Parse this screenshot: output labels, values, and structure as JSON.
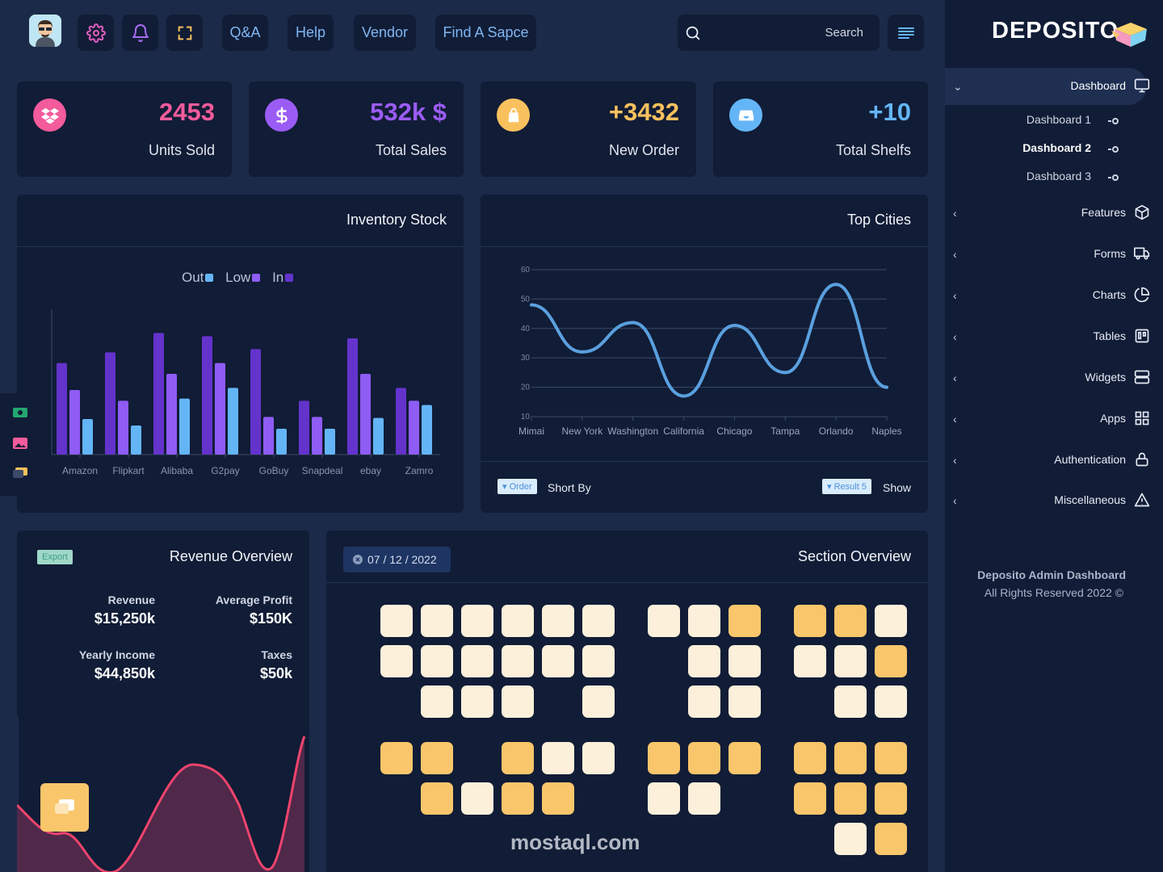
{
  "topbar": {
    "avatar_icon": "user-avatar-icon",
    "settings_icon": "gear-icon",
    "bell_icon": "bell-icon",
    "fullscreen_icon": "fullscreen-icon",
    "links": [
      "Q&A",
      "Help",
      "Vendor",
      "Find A Sapce"
    ],
    "search_placeholder": "Search",
    "menu_icon": "menu-lines-icon"
  },
  "stats": [
    {
      "value": "2453",
      "label": "Units Sold",
      "icon": "dropbox-icon",
      "color": "#f35b9c"
    },
    {
      "value": "532k $",
      "label": "Total Sales",
      "icon": "dollar-icon",
      "color": "#9b5cf5"
    },
    {
      "value": "+3432",
      "label": "New Order",
      "icon": "shopping-bag-icon",
      "color": "#f9c15e"
    },
    {
      "value": "+10",
      "label": "Total Shelfs",
      "icon": "inbox-icon",
      "color": "#64b5f6"
    }
  ],
  "inventory": {
    "title": "Inventory Stock",
    "legend": [
      "Out",
      "Low",
      "In"
    ],
    "colors": {
      "Out": "#64b5f6",
      "Low": "#8f5cf5",
      "In": "#6433cc"
    }
  },
  "top_cities": {
    "title": "Top Cities",
    "order_tag": "Order",
    "short_by": "Short By",
    "result_tag": "Result 5",
    "show": "Show"
  },
  "chart_data": [
    {
      "type": "bar",
      "categories": [
        "Amazon",
        "Flipkart",
        "Alibaba",
        "G2pay",
        "GoBuy",
        "Snapdeal",
        "ebay",
        "Zamro"
      ],
      "series": [
        {
          "name": "In",
          "values": [
            85,
            95,
            113,
            110,
            98,
            50,
            108,
            62
          ]
        },
        {
          "name": "Low",
          "values": [
            60,
            50,
            75,
            85,
            35,
            35,
            75,
            50
          ]
        },
        {
          "name": "Out",
          "values": [
            33,
            27,
            52,
            62,
            24,
            24,
            34,
            46
          ]
        }
      ],
      "ylim": [
        0,
        135
      ]
    },
    {
      "type": "line",
      "categories": [
        "Mimai",
        "New York",
        "Washington",
        "California",
        "Chicago",
        "Tampa",
        "Orlando",
        "Naples"
      ],
      "ylim": [
        10,
        60
      ],
      "yticks": [
        10,
        20,
        30,
        40,
        50,
        60
      ],
      "series": [
        {
          "values": [
            48,
            32,
            42,
            17,
            41,
            25,
            55,
            20
          ]
        }
      ],
      "color": "#5aa0de"
    }
  ],
  "revenue": {
    "title": "Revenue Overview",
    "export": "Export",
    "items": [
      {
        "label": "Revenue",
        "value": "$15,250k"
      },
      {
        "label": "Average Profit",
        "value": "$150K"
      },
      {
        "label": "Yearly Income",
        "value": "$44,850k"
      },
      {
        "label": "Taxes",
        "value": "$50k"
      }
    ]
  },
  "section": {
    "title": "Section Overview",
    "date": "07 / 12 / 2022",
    "colors": {
      "free": "#fdf0db",
      "taken": "#f9c66b"
    }
  },
  "sidebar": {
    "brand": "DEPOSITO",
    "items": [
      {
        "label": "Dashboard",
        "icon": "monitor-icon",
        "expanded": true
      },
      {
        "label": "Features",
        "icon": "cube-icon"
      },
      {
        "label": "Forms",
        "icon": "truck-icon"
      },
      {
        "label": "Charts",
        "icon": "pie-chart-icon"
      },
      {
        "label": "Tables",
        "icon": "trello-icon"
      },
      {
        "label": "Widgets",
        "icon": "server-icon"
      },
      {
        "label": "Apps",
        "icon": "grid-icon"
      },
      {
        "label": "Authentication",
        "icon": "lock-icon"
      },
      {
        "label": "Miscellaneous",
        "icon": "alert-triangle-icon"
      }
    ],
    "subitems": [
      "Dashboard 1",
      "Dashboard 2",
      "Dashboard 3"
    ],
    "footer_title": "Deposito Admin Dashboard",
    "footer_copy": "All Rights Reserved 2022 ©"
  },
  "watermark": {
    "text": "mostaql.com"
  }
}
